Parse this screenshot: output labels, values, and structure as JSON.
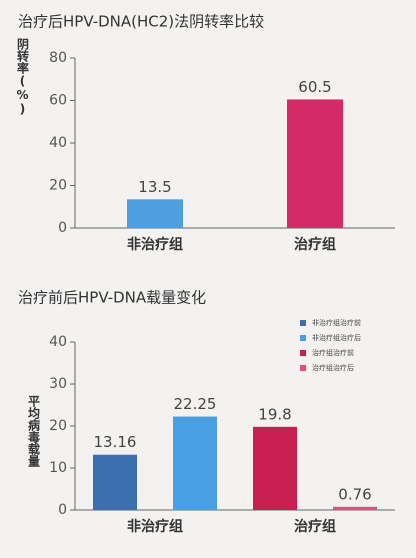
{
  "chart_data": [
    {
      "type": "bar",
      "title": "治疗后HPV-DNA(HC2)法阴转率比较",
      "y_label": "阴转率(%)",
      "categories": [
        "非治疗组",
        "治疗组"
      ],
      "values": [
        13.5,
        60.5
      ],
      "colors": [
        "#4f9fe0",
        "#d42a66"
      ],
      "ylim": [
        0,
        80
      ],
      "yticks": [
        0,
        20,
        40,
        60,
        80
      ]
    },
    {
      "type": "grouped_bar",
      "title": "治疗前后HPV-DNA载量变化",
      "y_label": "平均病毒载量",
      "categories": [
        "非治疗组",
        "治疗组"
      ],
      "series": [
        {
          "name": "非治疗组治疗前",
          "color": "#3b6fae",
          "values": [
            13.16,
            null
          ]
        },
        {
          "name": "非治疗组治疗后",
          "color": "#4a9fe2",
          "values": [
            22.25,
            null
          ]
        },
        {
          "name": "治疗组治疗前",
          "color": "#c81e50",
          "values": [
            null,
            19.8
          ]
        },
        {
          "name": "治疗组治疗后",
          "color": "#e34c85",
          "values": [
            null,
            0.76
          ]
        }
      ],
      "ylim": [
        0,
        40
      ],
      "yticks": [
        0,
        10,
        20,
        30,
        40
      ]
    }
  ]
}
